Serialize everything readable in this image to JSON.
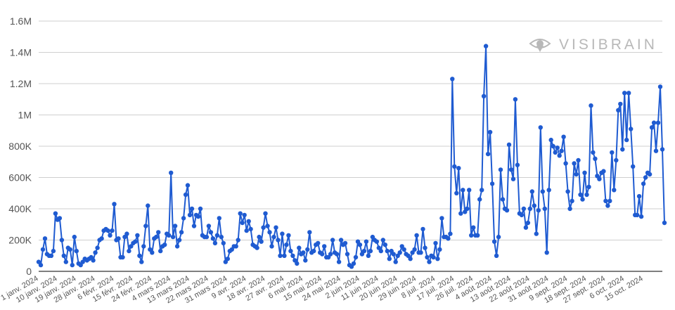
{
  "chart_data": {
    "type": "line",
    "title": "",
    "xlabel": "",
    "ylabel": "",
    "ylim": [
      0,
      1600000
    ],
    "yticks": [
      0,
      200000,
      400000,
      600000,
      800000,
      1000000,
      1200000,
      1400000,
      1600000
    ],
    "ytick_labels": [
      "0",
      "200K",
      "400K",
      "600K",
      "800K",
      "1M",
      "1.2M",
      "1.4M",
      "1.6M"
    ],
    "x_start": "2024-01-01",
    "x_end": "2024-10-24",
    "xtick_dates": [
      "2024-01-01",
      "2024-01-10",
      "2024-01-19",
      "2024-01-28",
      "2024-02-06",
      "2024-02-15",
      "2024-02-24",
      "2024-03-04",
      "2024-03-13",
      "2024-03-22",
      "2024-03-31",
      "2024-04-09",
      "2024-04-18",
      "2024-04-27",
      "2024-05-06",
      "2024-05-15",
      "2024-05-24",
      "2024-06-02",
      "2024-06-11",
      "2024-06-20",
      "2024-06-29",
      "2024-07-08",
      "2024-07-17",
      "2024-07-26",
      "2024-08-04",
      "2024-08-13",
      "2024-08-22",
      "2024-08-31",
      "2024-09-09",
      "2024-09-18",
      "2024-09-27",
      "2024-10-06",
      "2024-10-15"
    ],
    "xtick_labels": [
      "1 janv. 2024",
      "10 janv. 2024",
      "19 janv. 2024",
      "28 janv. 2024",
      "6 févr. 2024",
      "15 févr. 2024",
      "24 févr. 2024",
      "4 mars 2024",
      "13 mars 2024",
      "22 mars 2024",
      "31 mars 2024",
      "9 avr. 2024",
      "18 avr. 2024",
      "27 avr. 2024",
      "6 mai 2024",
      "15 mai 2024",
      "24 mai 2024",
      "2 juin 2024",
      "11 juin 2024",
      "20 juin 2024",
      "29 juin 2024",
      "8 juil. 2024",
      "17 juil. 2024",
      "26 juil. 2024",
      "4 août 2024",
      "13 août 2024",
      "22 août 2024",
      "31 août 2024",
      "9 sept. 2024",
      "18 sept. 2024",
      "27 sept. 2024",
      "6 oct. 2024",
      "15 oct. 2024"
    ],
    "grid": true,
    "legend": "none",
    "series": [
      {
        "color": "#1f5bd1",
        "values": [
          60000,
          40000,
          140000,
          210000,
          110000,
          100000,
          100000,
          130000,
          370000,
          330000,
          340000,
          200000,
          100000,
          60000,
          150000,
          140000,
          40000,
          220000,
          130000,
          50000,
          40000,
          60000,
          80000,
          70000,
          80000,
          90000,
          70000,
          120000,
          150000,
          200000,
          210000,
          260000,
          270000,
          260000,
          230000,
          260000,
          430000,
          200000,
          210000,
          90000,
          90000,
          220000,
          240000,
          130000,
          160000,
          180000,
          190000,
          230000,
          100000,
          60000,
          160000,
          290000,
          420000,
          140000,
          120000,
          210000,
          220000,
          250000,
          130000,
          160000,
          170000,
          240000,
          230000,
          630000,
          220000,
          290000,
          160000,
          200000,
          250000,
          340000,
          490000,
          550000,
          360000,
          400000,
          290000,
          360000,
          350000,
          400000,
          230000,
          220000,
          220000,
          290000,
          250000,
          210000,
          180000,
          230000,
          340000,
          220000,
          180000,
          60000,
          80000,
          130000,
          140000,
          160000,
          160000,
          200000,
          370000,
          310000,
          360000,
          260000,
          320000,
          270000,
          170000,
          160000,
          150000,
          220000,
          190000,
          280000,
          370000,
          290000,
          250000,
          160000,
          220000,
          280000,
          200000,
          100000,
          240000,
          100000,
          170000,
          230000,
          130000,
          100000,
          70000,
          50000,
          150000,
          110000,
          120000,
          70000,
          140000,
          250000,
          120000,
          130000,
          170000,
          180000,
          120000,
          110000,
          160000,
          90000,
          90000,
          110000,
          200000,
          120000,
          110000,
          60000,
          200000,
          170000,
          180000,
          110000,
          40000,
          30000,
          50000,
          90000,
          190000,
          170000,
          110000,
          130000,
          190000,
          100000,
          130000,
          220000,
          200000,
          190000,
          150000,
          130000,
          200000,
          170000,
          130000,
          80000,
          130000,
          110000,
          60000,
          100000,
          120000,
          160000,
          140000,
          110000,
          100000,
          80000,
          120000,
          140000,
          230000,
          120000,
          120000,
          270000,
          150000,
          90000,
          60000,
          100000,
          90000,
          180000,
          80000,
          140000,
          340000,
          220000,
          220000,
          210000,
          240000,
          1230000,
          670000,
          500000,
          660000,
          370000,
          520000,
          380000,
          400000,
          520000,
          230000,
          280000,
          230000,
          230000,
          460000,
          520000,
          1120000,
          1440000,
          750000,
          890000,
          560000,
          190000,
          100000,
          220000,
          650000,
          460000,
          400000,
          390000,
          810000,
          650000,
          590000,
          1100000,
          680000,
          370000,
          360000,
          400000,
          280000,
          310000,
          400000,
          510000,
          420000,
          240000,
          390000,
          920000,
          510000,
          400000,
          120000,
          520000,
          840000,
          800000,
          760000,
          790000,
          740000,
          770000,
          860000,
          690000,
          510000,
          400000,
          450000,
          690000,
          620000,
          710000,
          490000,
          460000,
          630000,
          490000,
          540000,
          1060000,
          760000,
          720000,
          610000,
          590000,
          630000,
          640000,
          450000,
          420000,
          450000,
          760000,
          520000,
          710000,
          1030000,
          1070000,
          780000,
          1140000,
          840000,
          1140000,
          910000,
          670000,
          360000,
          360000,
          480000,
          350000,
          560000,
          600000,
          630000,
          620000,
          920000,
          950000,
          770000,
          950000,
          1180000,
          780000,
          310000
        ]
      }
    ]
  },
  "watermark": {
    "text": "VISIBRAIN",
    "icon": "eye-icon",
    "color": "#b8b8b8"
  }
}
